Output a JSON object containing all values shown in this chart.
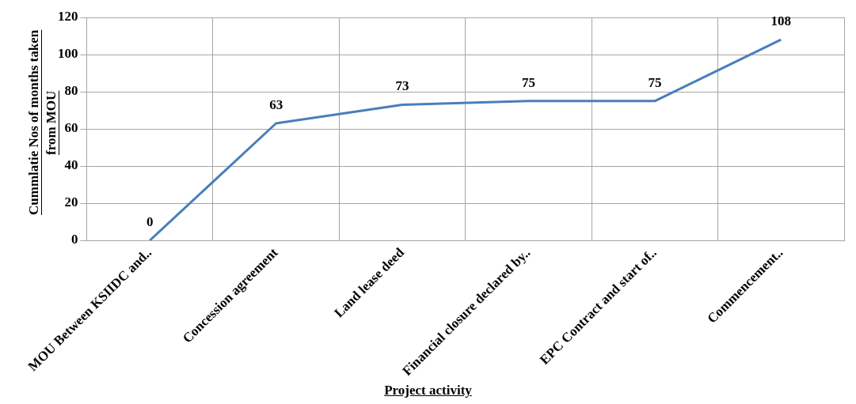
{
  "chart_data": {
    "type": "line",
    "xlabel": "Project activity",
    "ylabel": "Cummlatie  Nos of months taken from MOU",
    "categories": [
      "MOU Between KSIIDC and..",
      "Concession agreement",
      "Land lease deed",
      "Financial closure declared by..",
      "EPC Contract and start of..",
      "Commencement.."
    ],
    "series": [
      {
        "color": "#4a7ebb",
        "values": [
          0,
          63,
          73,
          75,
          75,
          108
        ]
      }
    ],
    "ylim": [
      0,
      120
    ],
    "yticks": [
      0,
      20,
      40,
      60,
      80,
      100,
      120
    ],
    "grid": true,
    "legend": false,
    "marker": "none",
    "line_style": "solid",
    "data_labels": true
  }
}
